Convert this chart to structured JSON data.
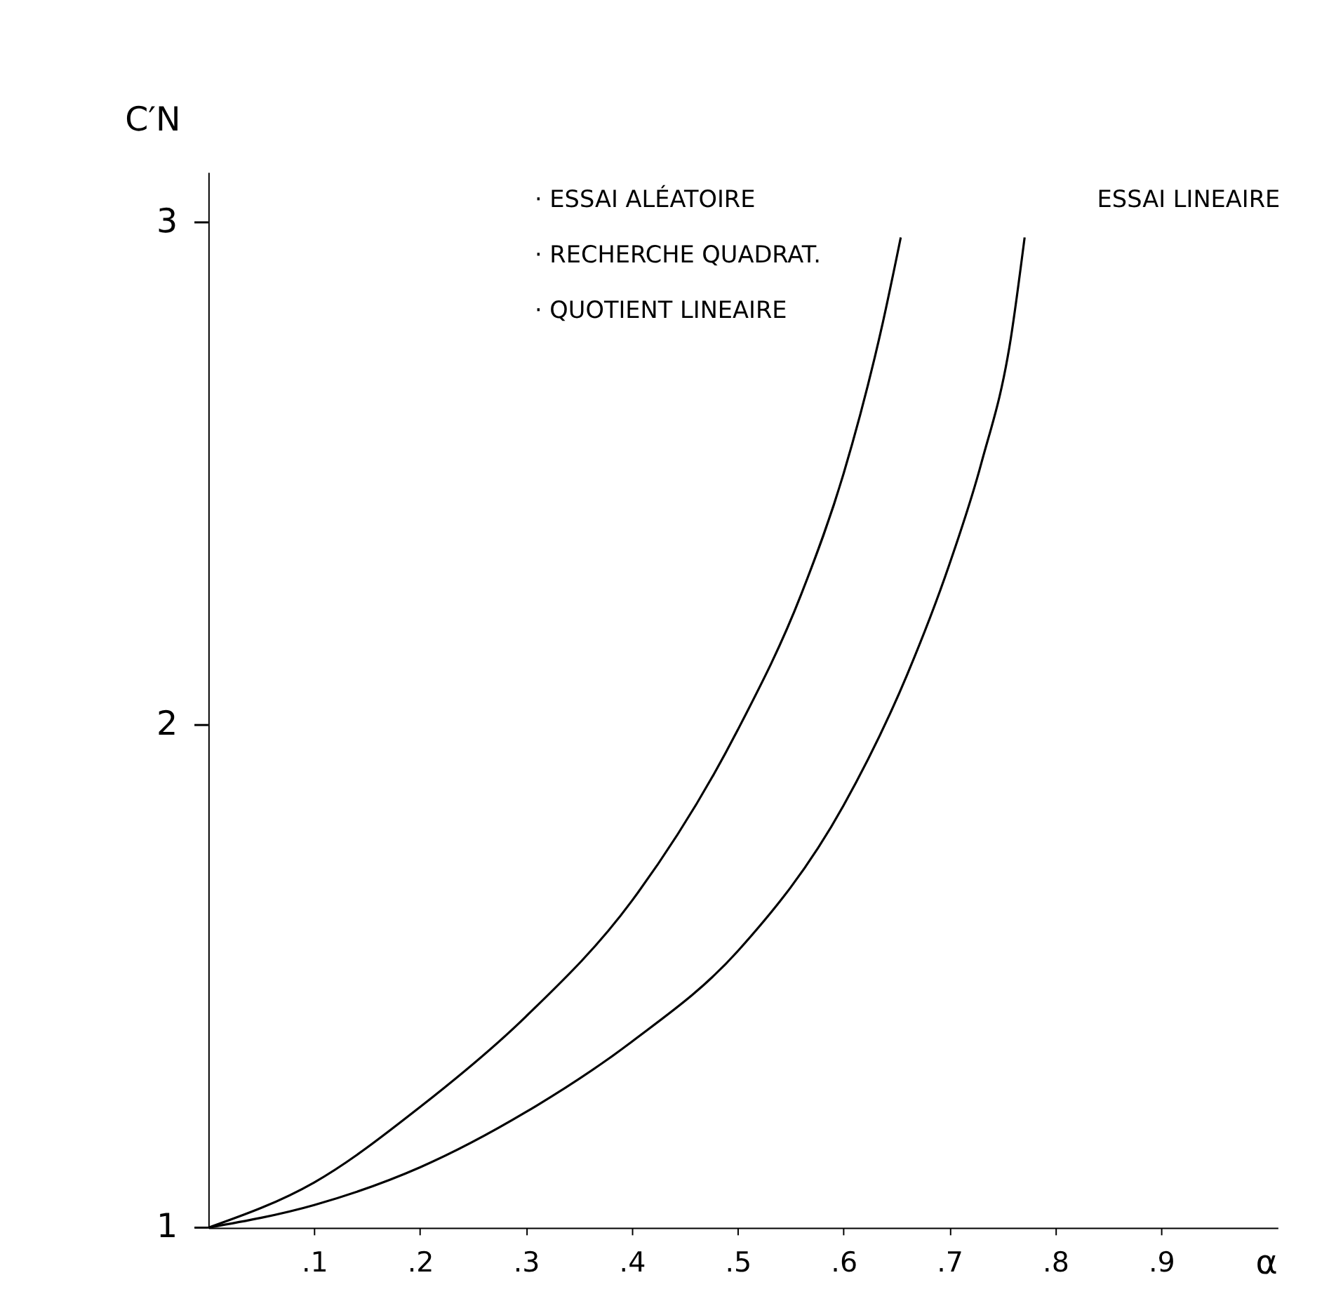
{
  "chart_data": {
    "type": "line",
    "ylabel": "C′N",
    "xlabel": "α",
    "xlim": [
      0,
      1.01
    ],
    "ylim": [
      1,
      3.1
    ],
    "xticks": [
      {
        "value": 0.1,
        "label": ".1"
      },
      {
        "value": 0.2,
        "label": ".2"
      },
      {
        "value": 0.3,
        "label": ".3"
      },
      {
        "value": 0.4,
        "label": ".4"
      },
      {
        "value": 0.5,
        "label": ".5"
      },
      {
        "value": 0.6,
        "label": ".6"
      },
      {
        "value": 0.7,
        "label": ".7"
      },
      {
        "value": 0.8,
        "label": ".8"
      },
      {
        "value": 0.9,
        "label": ".9"
      }
    ],
    "yticks": [
      1,
      2,
      3
    ],
    "grid": false,
    "series": [
      {
        "color": "#000000",
        "x": [
          0,
          0.1,
          0.2,
          0.3,
          0.4,
          0.5,
          0.56,
          0.6,
          0.637,
          0.654
        ],
        "values": [
          1,
          1.09,
          1.24,
          1.42,
          1.65,
          1.99,
          2.26,
          2.5,
          2.8,
          2.97
        ]
      },
      {
        "color": "#000000",
        "x": [
          0,
          0.1,
          0.2,
          0.3,
          0.4,
          0.5,
          0.6,
          0.66,
          0.7,
          0.73,
          0.758,
          0.771
        ],
        "values": [
          1,
          1.045,
          1.12,
          1.23,
          1.37,
          1.55,
          1.84,
          2.1,
          2.32,
          2.52,
          2.77,
          2.97
        ]
      }
    ],
    "annotations": [
      "· ESSAI ALÉATOIRE",
      "· RECHERCHE QUADRAT.",
      "· QUOTIENT LINEAIRE",
      "ESSAI LINEAIRE"
    ]
  }
}
